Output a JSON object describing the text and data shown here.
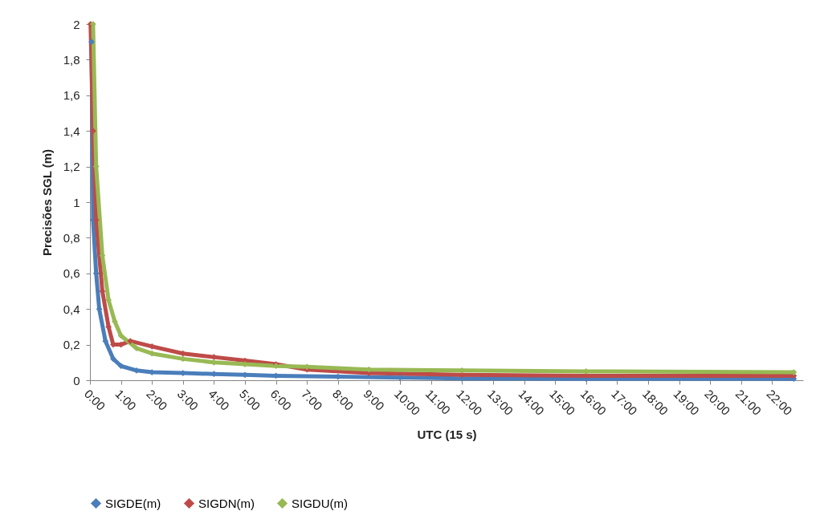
{
  "chart_data": {
    "type": "line",
    "xlabel": "UTC (15 s)",
    "ylabel": "Precisões SGL (m)",
    "xlim": [
      0,
      23
    ],
    "xticks": [
      {
        "value": 0,
        "label": "0:00"
      },
      {
        "value": 1,
        "label": "1:00"
      },
      {
        "value": 2,
        "label": "2:00"
      },
      {
        "value": 3,
        "label": "3:00"
      },
      {
        "value": 4,
        "label": "4:00"
      },
      {
        "value": 5,
        "label": "5:00"
      },
      {
        "value": 6,
        "label": "6:00"
      },
      {
        "value": 7,
        "label": "7:00"
      },
      {
        "value": 8,
        "label": "8:00"
      },
      {
        "value": 9,
        "label": "9:00"
      },
      {
        "value": 10,
        "label": "10:00"
      },
      {
        "value": 11,
        "label": "11:00"
      },
      {
        "value": 12,
        "label": "12:00"
      },
      {
        "value": 13,
        "label": "13:00"
      },
      {
        "value": 14,
        "label": "14:00"
      },
      {
        "value": 15,
        "label": "15:00"
      },
      {
        "value": 16,
        "label": "16:00"
      },
      {
        "value": 17,
        "label": "17:00"
      },
      {
        "value": 18,
        "label": "18:00"
      },
      {
        "value": 19,
        "label": "19:00"
      },
      {
        "value": 20,
        "label": "20:00"
      },
      {
        "value": 21,
        "label": "21:00"
      },
      {
        "value": 22,
        "label": "22:00"
      }
    ],
    "ylim": [
      0,
      2
    ],
    "yticks": [
      0,
      {
        "value": 0.2,
        "label": "0,2"
      },
      {
        "value": 0.4,
        "label": "0,4"
      },
      {
        "value": 0.6,
        "label": "0,6"
      },
      {
        "value": 0.8,
        "label": "0,8"
      },
      1,
      {
        "value": 1.2,
        "label": "1,2"
      },
      {
        "value": 1.4,
        "label": "1,4"
      },
      {
        "value": 1.6,
        "label": "1,6"
      },
      {
        "value": 1.8,
        "label": "1,8"
      },
      2
    ],
    "grid": false,
    "legend": "bottom",
    "marker": "diamond",
    "series": [
      {
        "name": "SIGDE(m)",
        "color": "#4a7ebb",
        "x": [
          0.05,
          0.1,
          0.2,
          0.3,
          0.5,
          0.75,
          1,
          1.5,
          2,
          3,
          4,
          5,
          6,
          8,
          10,
          12,
          16,
          22.7
        ],
        "values": [
          1.9,
          0.9,
          0.6,
          0.4,
          0.22,
          0.12,
          0.08,
          0.055,
          0.045,
          0.04,
          0.035,
          0.03,
          0.025,
          0.02,
          0.015,
          0.01,
          0.008,
          0.008
        ]
      },
      {
        "name": "SIGDN(m)",
        "color": "#be4b48",
        "x": [
          0.02,
          0.1,
          0.2,
          0.4,
          0.6,
          0.75,
          1,
          1.3,
          2,
          3,
          4,
          5,
          6,
          7,
          9,
          12,
          16,
          22.7
        ],
        "values": [
          2,
          1.4,
          0.9,
          0.5,
          0.3,
          0.2,
          0.2,
          0.22,
          0.19,
          0.15,
          0.13,
          0.11,
          0.09,
          0.06,
          0.04,
          0.03,
          0.025,
          0.025
        ]
      },
      {
        "name": "SIGDU(m)",
        "color": "#98b954",
        "x": [
          0.1,
          0.2,
          0.4,
          0.6,
          0.8,
          1,
          1.5,
          2,
          3,
          4,
          5,
          6,
          7,
          9,
          12,
          16,
          22.7
        ],
        "values": [
          2,
          1.2,
          0.7,
          0.45,
          0.33,
          0.25,
          0.18,
          0.15,
          0.12,
          0.1,
          0.09,
          0.08,
          0.075,
          0.06,
          0.055,
          0.05,
          0.045
        ]
      }
    ]
  }
}
